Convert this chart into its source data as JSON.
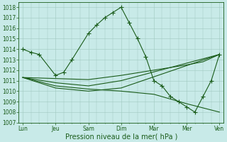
{
  "background_color": "#c8eae8",
  "grid_color": "#a0c8c0",
  "line_color": "#1a5c1a",
  "marker_color": "#1a5c1a",
  "x_labels": [
    "Lun",
    "Jeu",
    "Sam",
    "Dim",
    "Mar",
    "Mer",
    "Ven"
  ],
  "x_tick_pos": [
    0,
    8,
    16,
    24,
    32,
    40,
    48
  ],
  "series1_x": [
    0,
    2,
    4,
    8,
    10,
    12,
    16,
    18,
    20,
    22,
    24,
    26,
    28,
    30,
    32,
    34,
    36,
    38,
    40,
    42,
    44,
    46,
    48
  ],
  "series1_y": [
    1014,
    1013.7,
    1013.5,
    1011.5,
    1011.8,
    1013.0,
    1015.5,
    1016.3,
    1017.0,
    1017.5,
    1018.0,
    1016.5,
    1015.0,
    1013.3,
    1011.0,
    1010.5,
    1009.5,
    1009.0,
    1008.5,
    1008.0,
    1009.5,
    1011.0,
    1013.5
  ],
  "series2_x": [
    0,
    8,
    16,
    24,
    32,
    40,
    44,
    48
  ],
  "series2_y": [
    1011.3,
    1011.2,
    1011.1,
    1011.5,
    1012.0,
    1012.5,
    1012.8,
    1013.5
  ],
  "series3_x": [
    0,
    8,
    16,
    24,
    48
  ],
  "series3_y": [
    1011.3,
    1010.8,
    1010.5,
    1011.0,
    1013.5
  ],
  "series4_x": [
    0,
    8,
    16,
    24,
    48
  ],
  "series4_y": [
    1011.3,
    1010.3,
    1010.0,
    1010.3,
    1013.5
  ],
  "series5_x": [
    0,
    8,
    16,
    24,
    32,
    40,
    48
  ],
  "series5_y": [
    1011.3,
    1010.5,
    1010.2,
    1010.0,
    1009.7,
    1008.8,
    1008.0
  ],
  "ylim": [
    1007,
    1018.5
  ],
  "yticks": [
    1007,
    1008,
    1009,
    1010,
    1011,
    1012,
    1013,
    1014,
    1015,
    1016,
    1017,
    1018
  ],
  "xlim": [
    -1,
    49
  ],
  "xlabel": "Pression niveau de la mer( hPa )",
  "tick_fontsize": 5.5,
  "axis_fontsize": 7.0
}
